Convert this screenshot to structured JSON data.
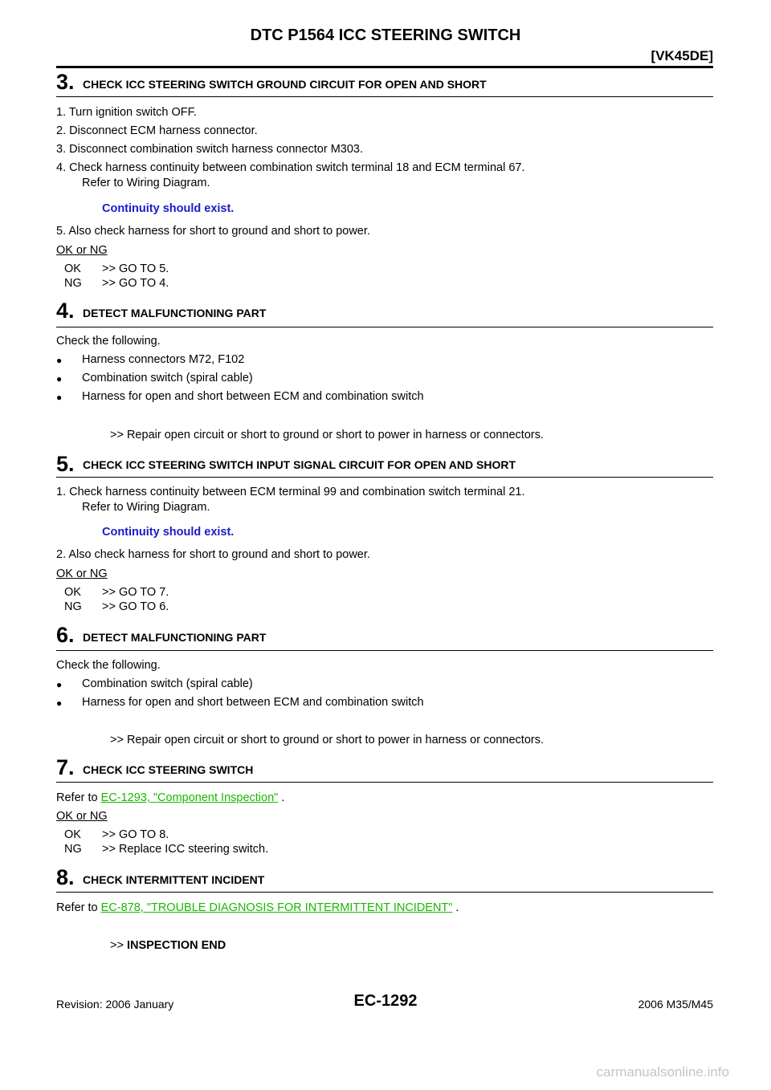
{
  "header": {
    "title": "DTC P1564 ICC STEERING SWITCH",
    "model": "[VK45DE]"
  },
  "steps": [
    {
      "num": "3.",
      "title": "CHECK ICC STEERING SWITCH GROUND CIRCUIT FOR OPEN AND SHORT",
      "items": [
        "1.   Turn ignition switch OFF.",
        "2.   Disconnect ECM harness connector.",
        "3.   Disconnect combination switch harness connector M303.",
        "4.   Check harness continuity between combination switch terminal 18 and ECM terminal 67.",
        "Refer to Wiring Diagram.",
        "5.   Also check harness for short to ground and short to power."
      ],
      "spec": "Continuity should exist.",
      "okng": "OK or NG",
      "results": [
        {
          "label": "OK",
          "text": ">> GO TO 5."
        },
        {
          "label": "NG",
          "text": ">> GO TO 4."
        }
      ]
    },
    {
      "num": "4.",
      "title": "DETECT MALFUNCTIONING PART",
      "intro": "Check the following.",
      "bullets": [
        "Harness connectors M72, F102",
        "Combination switch (spiral cable)",
        "Harness for open and short between ECM and combination switch"
      ],
      "action": ">> Repair open circuit or short to ground or short to power in harness or connectors."
    },
    {
      "num": "5.",
      "title": "CHECK ICC STEERING SWITCH INPUT SIGNAL CIRCUIT FOR OPEN AND SHORT",
      "items": [
        "1.   Check harness continuity between ECM terminal 99 and combination switch terminal 21.",
        "Refer to Wiring Diagram.",
        "2.   Also check harness for short to ground and short to power."
      ],
      "spec": "Continuity should exist.",
      "okng": "OK or NG",
      "results": [
        {
          "label": "OK",
          "text": ">> GO TO 7."
        },
        {
          "label": "NG",
          "text": ">> GO TO 6."
        }
      ]
    },
    {
      "num": "6.",
      "title": "DETECT MALFUNCTIONING PART",
      "intro": "Check the following.",
      "bullets": [
        "Combination switch (spiral cable)",
        "Harness for open and short between ECM and combination switch"
      ],
      "action": ">> Repair open circuit or short to ground or short to power in harness or connectors."
    },
    {
      "num": "7.",
      "title": "CHECK ICC STEERING SWITCH",
      "refer_prefix": "Refer to ",
      "link": "EC-1293, \"Component Inspection\"",
      "refer_suffix": " .",
      "okng": "OK or NG",
      "results": [
        {
          "label": "OK",
          "text": ">> GO TO 8."
        },
        {
          "label": "NG",
          "text": ">> Replace ICC steering switch."
        }
      ]
    },
    {
      "num": "8.",
      "title": "CHECK INTERMITTENT INCIDENT",
      "refer_prefix": "Refer to ",
      "link": "EC-878, \"TROUBLE DIAGNOSIS FOR INTERMITTENT INCIDENT\"",
      "refer_suffix": " .",
      "end_prefix": ">> ",
      "end_text": "INSPECTION END"
    }
  ],
  "footer": {
    "revision": "Revision: 2006 January",
    "page": "EC-1292",
    "model": "2006 M35/M45",
    "watermark": "carmanualsonline.info"
  },
  "icons": {
    "bullet": "●"
  }
}
